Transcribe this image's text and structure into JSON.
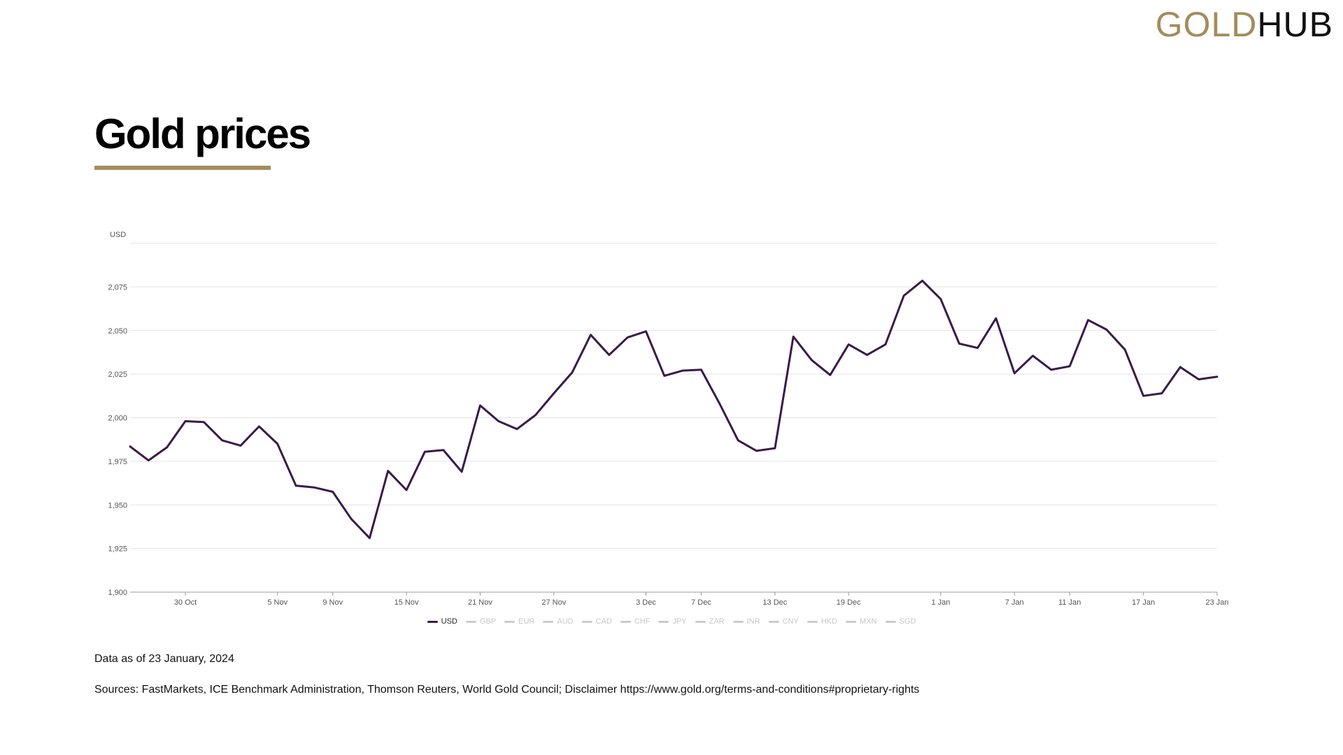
{
  "logo": {
    "gold": "GOLD",
    "hub": "HUB"
  },
  "title": "Gold prices",
  "as_of": "Data as of 23 January, 2024",
  "sources": "Sources: FastMarkets, ICE Benchmark Administration, Thomson Reuters, World Gold Council; Disclaimer https://www.gold.org/terms-and-conditions#proprietary-rights",
  "colors": {
    "accent": "#a38d5d",
    "series": "#3a1a4a",
    "grid": "#e4e4e4",
    "inactive": "#c7c7c7"
  },
  "legend": [
    {
      "label": "USD",
      "active": true
    },
    {
      "label": "GBP",
      "active": false
    },
    {
      "label": "EUR",
      "active": false
    },
    {
      "label": "AUD",
      "active": false
    },
    {
      "label": "CAD",
      "active": false
    },
    {
      "label": "CHF",
      "active": false
    },
    {
      "label": "JPY",
      "active": false
    },
    {
      "label": "ZAR",
      "active": false
    },
    {
      "label": "INR",
      "active": false
    },
    {
      "label": "CNY",
      "active": false
    },
    {
      "label": "HKD",
      "active": false
    },
    {
      "label": "MXN",
      "active": false
    },
    {
      "label": "SGD",
      "active": false
    }
  ],
  "chart_data": {
    "type": "line",
    "title": "Gold prices",
    "ylabel": "USD",
    "xlabel": "",
    "ylim": [
      1900,
      2100
    ],
    "yticks": [
      1900,
      1925,
      1950,
      1975,
      2000,
      2025,
      2050,
      2075
    ],
    "ytick_labels": [
      "1,900",
      "1,925",
      "1,950",
      "1,975",
      "2,000",
      "2,025",
      "2,050",
      "2,075"
    ],
    "grid": true,
    "legend_position": "bottom-center",
    "xticks": [
      {
        "index": 3,
        "label": "30 Oct"
      },
      {
        "index": 8,
        "label": "5 Nov"
      },
      {
        "index": 11,
        "label": "9 Nov"
      },
      {
        "index": 15,
        "label": "15 Nov"
      },
      {
        "index": 19,
        "label": "21 Nov"
      },
      {
        "index": 23,
        "label": "27 Nov"
      },
      {
        "index": 28,
        "label": "3 Dec"
      },
      {
        "index": 31,
        "label": "7 Dec"
      },
      {
        "index": 35,
        "label": "13 Dec"
      },
      {
        "index": 39,
        "label": "19 Dec"
      },
      {
        "index": 44,
        "label": "1 Jan"
      },
      {
        "index": 48,
        "label": "7 Jan"
      },
      {
        "index": 51,
        "label": "11 Jan"
      },
      {
        "index": 55,
        "label": "17 Jan"
      },
      {
        "index": 59,
        "label": "23 Jan"
      }
    ],
    "series": [
      {
        "name": "USD",
        "values": [
          1983.5,
          1975.5,
          1983,
          1998,
          1997.5,
          1987,
          1984,
          1995,
          1985,
          1961,
          1960,
          1957.5,
          1942,
          1931,
          1969.5,
          1958.5,
          1980.5,
          1981.5,
          1969,
          2007,
          1998,
          1993.5,
          2001.5,
          2014,
          2026,
          2047.5,
          2036,
          2046,
          2049.5,
          2024,
          2027,
          2027.5,
          2008,
          1987,
          1981,
          1982.5,
          2046.5,
          2033,
          2024.5,
          2042,
          2036,
          2042,
          2070,
          2078.5,
          2068,
          2042.5,
          2040,
          2057,
          2025.5,
          2035.5,
          2027.5,
          2029.5,
          2056,
          2050.5,
          2039,
          2012.5,
          2014,
          2029,
          2022,
          2023.5
        ]
      }
    ]
  }
}
